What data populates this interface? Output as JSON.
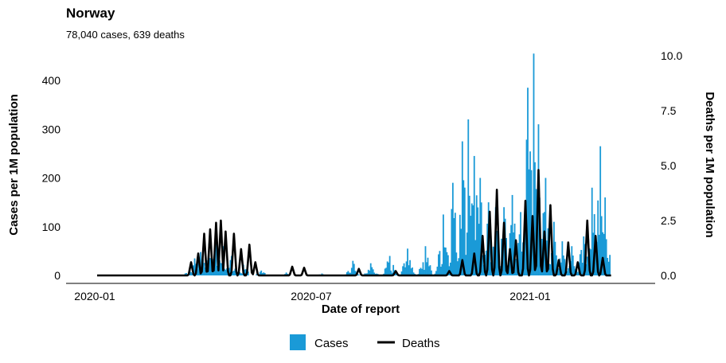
{
  "chart_data": {
    "type": "bar+line",
    "title": "Norway",
    "subtitle": "78,040 cases, 639 deaths",
    "xlabel": "Date of report",
    "ylabel_left": "Cases per 1M population",
    "ylabel_right": "Deaths per 1M population",
    "x_range": [
      "2020-01-03",
      "2021-03-10"
    ],
    "x_ticks": [
      {
        "label": "2020-01",
        "date": "2020-01-01"
      },
      {
        "label": "2020-07",
        "date": "2020-07-01"
      },
      {
        "label": "2021-01",
        "date": "2021-01-01"
      }
    ],
    "ylim_left": [
      0,
      450
    ],
    "yticks_left": [
      0,
      100,
      200,
      300,
      400
    ],
    "ylim_right": [
      0,
      10
    ],
    "yticks_right": [
      "0.0",
      "2.5",
      "5.0",
      "7.5",
      "10.0"
    ],
    "grid": false,
    "legend_position": "bottom",
    "colors": {
      "cases": "#1a9ad7",
      "deaths": "#000000"
    },
    "series": [
      {
        "name": "Cases",
        "kind": "bar",
        "axis": "left",
        "peaks": [
          {
            "date": "2020-03-18",
            "value": 5
          },
          {
            "date": "2020-03-25",
            "value": 35
          },
          {
            "date": "2020-03-30",
            "value": 48
          },
          {
            "date": "2020-04-06",
            "value": 65
          },
          {
            "date": "2020-04-12",
            "value": 78
          },
          {
            "date": "2020-04-18",
            "value": 60
          },
          {
            "date": "2020-04-25",
            "value": 40
          },
          {
            "date": "2020-05-05",
            "value": 22
          },
          {
            "date": "2020-05-20",
            "value": 10
          },
          {
            "date": "2020-06-10",
            "value": 6
          },
          {
            "date": "2020-07-10",
            "value": 4
          },
          {
            "date": "2020-08-05",
            "value": 30
          },
          {
            "date": "2020-08-20",
            "value": 25
          },
          {
            "date": "2020-09-05",
            "value": 40
          },
          {
            "date": "2020-09-20",
            "value": 55
          },
          {
            "date": "2020-10-05",
            "value": 60
          },
          {
            "date": "2020-10-20",
            "value": 125
          },
          {
            "date": "2020-10-28",
            "value": 190
          },
          {
            "date": "2020-11-05",
            "value": 275
          },
          {
            "date": "2020-11-10",
            "value": 320
          },
          {
            "date": "2020-11-15",
            "value": 245
          },
          {
            "date": "2020-11-20",
            "value": 200
          },
          {
            "date": "2020-11-27",
            "value": 150
          },
          {
            "date": "2020-12-03",
            "value": 140
          },
          {
            "date": "2020-12-10",
            "value": 140
          },
          {
            "date": "2020-12-17",
            "value": 165
          },
          {
            "date": "2020-12-24",
            "value": 130
          },
          {
            "date": "2020-12-30",
            "value": 385
          },
          {
            "date": "2021-01-04",
            "value": 455
          },
          {
            "date": "2021-01-08",
            "value": 310
          },
          {
            "date": "2021-01-14",
            "value": 200
          },
          {
            "date": "2021-01-21",
            "value": 110
          },
          {
            "date": "2021-01-28",
            "value": 70
          },
          {
            "date": "2021-02-05",
            "value": 60
          },
          {
            "date": "2021-02-15",
            "value": 80
          },
          {
            "date": "2021-02-22",
            "value": 180
          },
          {
            "date": "2021-03-01",
            "value": 265
          },
          {
            "date": "2021-03-05",
            "value": 160
          }
        ]
      },
      {
        "name": "Deaths",
        "kind": "line",
        "axis": "right",
        "peaks": [
          {
            "date": "2020-03-22",
            "value": 0.6
          },
          {
            "date": "2020-03-28",
            "value": 1.0
          },
          {
            "date": "2020-04-02",
            "value": 1.9
          },
          {
            "date": "2020-04-07",
            "value": 2.1
          },
          {
            "date": "2020-04-12",
            "value": 2.4
          },
          {
            "date": "2020-04-16",
            "value": 2.5
          },
          {
            "date": "2020-04-20",
            "value": 2.0
          },
          {
            "date": "2020-04-27",
            "value": 1.9
          },
          {
            "date": "2020-05-03",
            "value": 1.2
          },
          {
            "date": "2020-05-10",
            "value": 1.4
          },
          {
            "date": "2020-05-15",
            "value": 0.6
          },
          {
            "date": "2020-06-15",
            "value": 0.4
          },
          {
            "date": "2020-06-25",
            "value": 0.35
          },
          {
            "date": "2020-08-10",
            "value": 0.3
          },
          {
            "date": "2020-09-10",
            "value": 0.2
          },
          {
            "date": "2020-10-25",
            "value": 0.2
          },
          {
            "date": "2020-11-05",
            "value": 0.7
          },
          {
            "date": "2020-11-15",
            "value": 1.0
          },
          {
            "date": "2020-11-22",
            "value": 1.8
          },
          {
            "date": "2020-11-28",
            "value": 2.9
          },
          {
            "date": "2020-12-04",
            "value": 3.9
          },
          {
            "date": "2020-12-10",
            "value": 2.4
          },
          {
            "date": "2020-12-15",
            "value": 1.2
          },
          {
            "date": "2020-12-20",
            "value": 1.6
          },
          {
            "date": "2020-12-28",
            "value": 3.4
          },
          {
            "date": "2021-01-03",
            "value": 2.7
          },
          {
            "date": "2021-01-08",
            "value": 4.8
          },
          {
            "date": "2021-01-13",
            "value": 2.0
          },
          {
            "date": "2021-01-18",
            "value": 3.2
          },
          {
            "date": "2021-01-25",
            "value": 0.7
          },
          {
            "date": "2021-02-02",
            "value": 1.5
          },
          {
            "date": "2021-02-10",
            "value": 0.6
          },
          {
            "date": "2021-02-18",
            "value": 2.5
          },
          {
            "date": "2021-02-25",
            "value": 1.8
          },
          {
            "date": "2021-03-03",
            "value": 0.8
          }
        ]
      }
    ]
  }
}
